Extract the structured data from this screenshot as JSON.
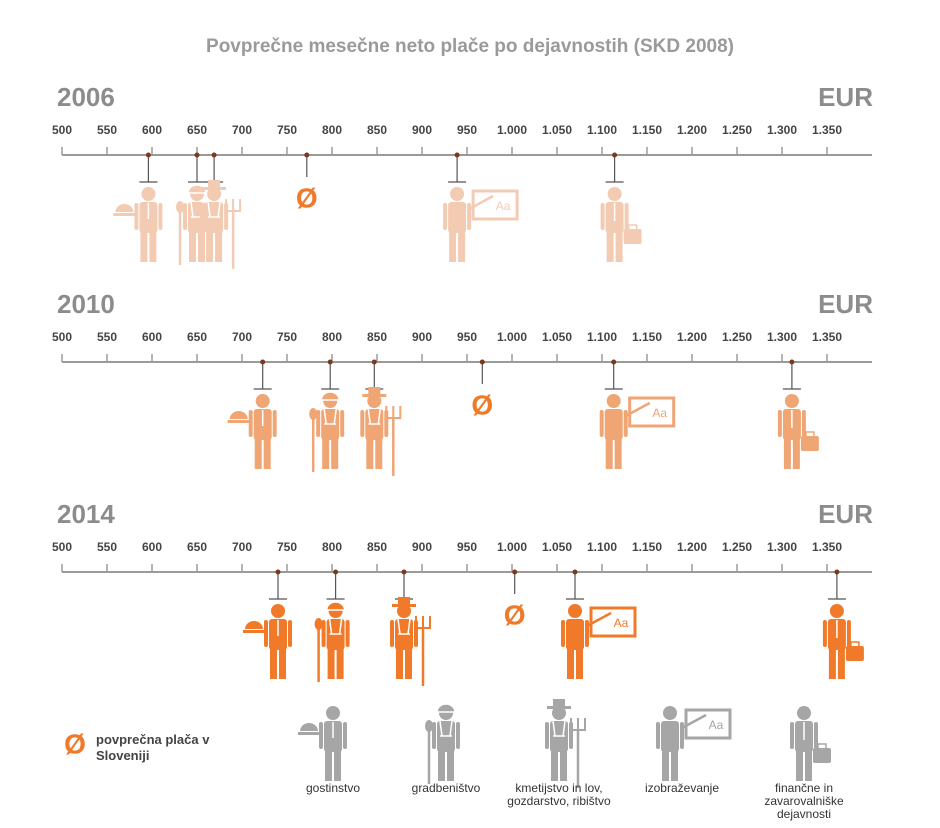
{
  "title": "Povprečne mesečne neto plače po dejavnostih (SKD 2008)",
  "board_text": "Aa",
  "average_symbol": "Ø",
  "average_color": "#f07a2a",
  "legend": {
    "average": "povprečna plača v Sloveniji",
    "icon_color": "#a6a6a6",
    "categories": [
      "gostinstvo",
      "gradbeništvo",
      "kmetijstvo in lov, gozdarstvo, ribištvo",
      "izobraževanje",
      "finančne in zavarovalniške dejavnosti"
    ]
  },
  "chart_data": [
    {
      "type": "dot",
      "title": "2006",
      "unit": "EUR",
      "color": "#f3cbb3",
      "values": [
        596,
        650,
        669,
        939,
        1114
      ],
      "average": 772,
      "xlim": [
        500,
        1400
      ],
      "xticks": [
        500,
        550,
        600,
        650,
        700,
        750,
        800,
        850,
        900,
        950,
        {
          "value": 1000,
          "label": "1.000"
        },
        {
          "value": 1050,
          "label": "1.050"
        },
        {
          "value": 1100,
          "label": "1.100"
        },
        {
          "value": 1150,
          "label": "1.150"
        },
        {
          "value": 1200,
          "label": "1.200"
        },
        {
          "value": 1250,
          "label": "1.250"
        },
        {
          "value": 1300,
          "label": "1.300"
        },
        {
          "value": 1350,
          "label": "1.350"
        }
      ]
    },
    {
      "type": "dot",
      "title": "2010",
      "unit": "EUR",
      "color": "#f0a575",
      "values": [
        723,
        798,
        847,
        1113,
        1311
      ],
      "average": 967,
      "xlim": [
        500,
        1400
      ],
      "xticks": [
        500,
        550,
        600,
        650,
        700,
        750,
        800,
        850,
        900,
        950,
        {
          "value": 1000,
          "label": "1.000"
        },
        {
          "value": 1050,
          "label": "1.050"
        },
        {
          "value": 1100,
          "label": "1.100"
        },
        {
          "value": 1150,
          "label": "1.150"
        },
        {
          "value": 1200,
          "label": "1.200"
        },
        {
          "value": 1250,
          "label": "1.250"
        },
        {
          "value": 1300,
          "label": "1.300"
        },
        {
          "value": 1350,
          "label": "1.350"
        }
      ]
    },
    {
      "type": "dot",
      "title": "2014",
      "unit": "EUR",
      "color": "#f07a2a",
      "values": [
        740,
        804,
        880,
        1070,
        1361
      ],
      "average": 1003,
      "xlim": [
        500,
        1400
      ],
      "xticks": [
        500,
        550,
        600,
        650,
        700,
        750,
        800,
        850,
        900,
        950,
        {
          "value": 1000,
          "label": "1.000"
        },
        {
          "value": 1050,
          "label": "1.050"
        },
        {
          "value": 1100,
          "label": "1.100"
        },
        {
          "value": 1150,
          "label": "1.150"
        },
        {
          "value": 1200,
          "label": "1.200"
        },
        {
          "value": 1250,
          "label": "1.250"
        },
        {
          "value": 1300,
          "label": "1.300"
        },
        {
          "value": 1350,
          "label": "1.350"
        }
      ]
    }
  ]
}
